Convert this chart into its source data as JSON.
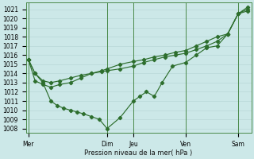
{
  "xlabel": "Pression niveau de la mer( hPa )",
  "bg_color": "#cce8e8",
  "grid_color": "#aacccc",
  "line_color": "#2d6e2d",
  "ylim": [
    1007.5,
    1021.7
  ],
  "yticks": [
    1008,
    1009,
    1010,
    1011,
    1012,
    1013,
    1014,
    1015,
    1016,
    1017,
    1018,
    1019,
    1020,
    1021
  ],
  "xtick_labels": [
    "Mer",
    "Dim",
    "Jeu",
    "Ven",
    "Sam"
  ],
  "xtick_positions": [
    0,
    3.0,
    4.0,
    6.0,
    8.0
  ],
  "xlim": [
    -0.1,
    8.5
  ],
  "vline_positions": [
    0,
    3.0,
    4.0,
    6.0,
    8.0
  ],
  "series1_x": [
    0.0,
    0.25,
    0.55,
    0.85,
    1.2,
    1.6,
    2.0,
    2.4,
    2.8,
    3.0,
    3.5,
    4.0,
    4.4,
    4.8,
    5.2,
    5.6,
    6.0,
    6.4,
    6.8,
    7.2,
    7.6,
    8.0,
    8.35
  ],
  "series1_y": [
    1015.5,
    1014.0,
    1013.2,
    1013.0,
    1013.2,
    1013.5,
    1013.8,
    1014.0,
    1014.2,
    1014.3,
    1014.5,
    1014.8,
    1015.2,
    1015.5,
    1015.8,
    1016.0,
    1016.2,
    1016.6,
    1017.0,
    1017.5,
    1018.3,
    1020.5,
    1021.2
  ],
  "series2_x": [
    0.0,
    0.25,
    0.55,
    0.85,
    1.1,
    1.35,
    1.6,
    1.85,
    2.1,
    2.4,
    2.7,
    3.0,
    3.5,
    4.0,
    4.25,
    4.5,
    4.8,
    5.1,
    5.5,
    6.0,
    6.4,
    6.8,
    7.2,
    7.6,
    8.0,
    8.35
  ],
  "series2_y": [
    1015.5,
    1014.0,
    1013.0,
    1011.0,
    1010.5,
    1010.2,
    1010.0,
    1009.8,
    1009.6,
    1009.3,
    1009.0,
    1008.0,
    1009.2,
    1011.0,
    1011.5,
    1012.0,
    1011.5,
    1013.0,
    1014.8,
    1015.2,
    1016.0,
    1016.8,
    1017.0,
    1018.3,
    1020.5,
    1020.8
  ],
  "series3_x": [
    0.0,
    0.25,
    0.55,
    0.85,
    1.2,
    1.6,
    2.0,
    2.4,
    2.8,
    3.0,
    3.5,
    4.0,
    4.4,
    4.8,
    5.2,
    5.6,
    6.0,
    6.4,
    6.8,
    7.2,
    7.6,
    8.0,
    8.35
  ],
  "series3_y": [
    1015.5,
    1013.2,
    1012.8,
    1012.5,
    1012.8,
    1013.0,
    1013.5,
    1014.0,
    1014.3,
    1014.5,
    1015.0,
    1015.3,
    1015.5,
    1015.8,
    1016.0,
    1016.3,
    1016.5,
    1017.0,
    1017.5,
    1018.0,
    1018.3,
    1020.5,
    1021.0
  ]
}
